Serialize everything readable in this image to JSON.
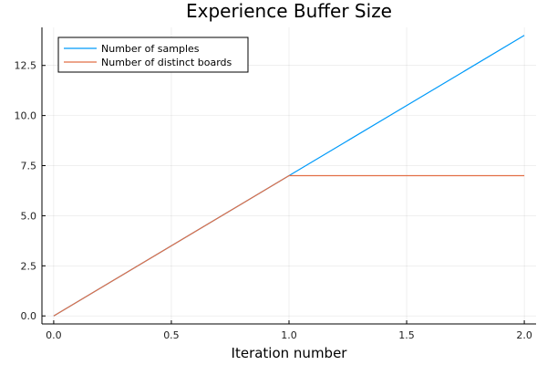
{
  "chart_data": {
    "type": "line",
    "title": "Experience Buffer Size",
    "xlabel": "Iteration number",
    "ylabel": "",
    "xlim": [
      -0.05,
      2.05
    ],
    "ylim": [
      -0.4,
      14.4
    ],
    "x_ticks": [
      0.0,
      0.5,
      1.0,
      1.5,
      2.0
    ],
    "x_tick_labels": [
      "0.0",
      "0.5",
      "1.0",
      "1.5",
      "2.0"
    ],
    "y_ticks": [
      0.0,
      2.5,
      5.0,
      7.5,
      10.0,
      12.5
    ],
    "y_tick_labels": [
      "0.0",
      "2.5",
      "5.0",
      "7.5",
      "10.0",
      "12.5"
    ],
    "grid": true,
    "legend_position": "top-left",
    "series": [
      {
        "name": "Number of samples",
        "color": "#009af9",
        "x": [
          0,
          1,
          2
        ],
        "y": [
          0,
          7,
          14
        ]
      },
      {
        "name": "Number of distinct boards",
        "color": "#e26f46",
        "x": [
          0,
          1,
          2
        ],
        "y": [
          0,
          7,
          7
        ]
      }
    ]
  }
}
